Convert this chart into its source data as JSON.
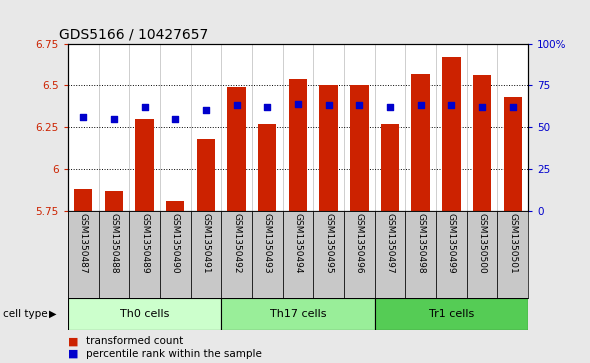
{
  "title": "GDS5166 / 10427657",
  "samples": [
    "GSM1350487",
    "GSM1350488",
    "GSM1350489",
    "GSM1350490",
    "GSM1350491",
    "GSM1350492",
    "GSM1350493",
    "GSM1350494",
    "GSM1350495",
    "GSM1350496",
    "GSM1350497",
    "GSM1350498",
    "GSM1350499",
    "GSM1350500",
    "GSM1350501"
  ],
  "transformed_count": [
    5.88,
    5.87,
    6.3,
    5.81,
    6.18,
    6.49,
    6.27,
    6.54,
    6.5,
    6.5,
    6.27,
    6.57,
    6.67,
    6.56,
    6.43
  ],
  "percentile_rank": [
    56,
    55,
    62,
    55,
    60,
    63,
    62,
    64,
    63,
    63,
    62,
    63,
    63,
    62,
    62
  ],
  "cell_types": [
    {
      "label": "Th0 cells",
      "start": 0,
      "end": 5,
      "color": "#ccffcc"
    },
    {
      "label": "Th17 cells",
      "start": 5,
      "end": 10,
      "color": "#99ee99"
    },
    {
      "label": "Tr1 cells",
      "start": 10,
      "end": 15,
      "color": "#55cc55"
    }
  ],
  "ylim_left": [
    5.75,
    6.75
  ],
  "ylim_right": [
    0,
    100
  ],
  "yticks_left": [
    5.75,
    6.0,
    6.25,
    6.5,
    6.75
  ],
  "yticks_right": [
    0,
    25,
    50,
    75,
    100
  ],
  "ytick_labels_left": [
    "5.75",
    "6",
    "6.25",
    "6.5",
    "6.75"
  ],
  "ytick_labels_right": [
    "0",
    "25",
    "50",
    "75",
    "100%"
  ],
  "bar_color": "#cc2200",
  "dot_color": "#0000cc",
  "bar_bottom": 5.75,
  "legend_label_bar": "transformed count",
  "legend_label_dot": "percentile rank within the sample",
  "cell_type_label": "cell type",
  "fig_bg_color": "#e8e8e8",
  "plot_bg_color": "#ffffff",
  "sample_bg_color": "#c8c8c8",
  "title_fontsize": 10,
  "tick_fontsize": 7.5,
  "sample_fontsize": 6.5,
  "ct_fontsize": 8,
  "legend_fontsize": 8
}
